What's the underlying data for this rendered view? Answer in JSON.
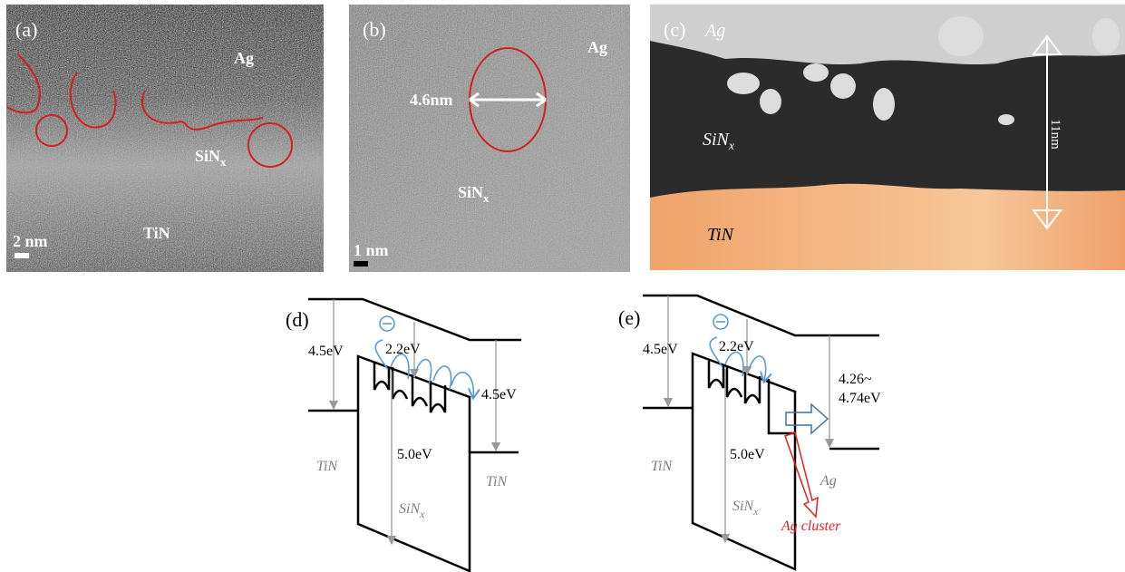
{
  "panels": {
    "a": {
      "label": "(a)",
      "ag": "Ag",
      "sinx": {
        "base": "SiN",
        "sub": "x"
      },
      "tin": "TiN",
      "scale": "2 nm"
    },
    "b": {
      "label": "(b)",
      "ag": "Ag",
      "size": "4.6nm",
      "sinx": {
        "base": "SiN",
        "sub": "x"
      },
      "scale": "1 nm"
    },
    "c": {
      "label": "(c)",
      "ag": "Ag",
      "sinx": {
        "base": "SiN",
        "sub": "x"
      },
      "tin": "TiN",
      "thickness": "11nm"
    },
    "d": {
      "label": "(d)",
      "barrier_left": "4.5eV",
      "trap_depth": "2.2eV",
      "barrier_right": "4.5eV",
      "gap": "5.0eV",
      "left": "TiN",
      "middle": {
        "base": "SiN",
        "sub": "x"
      },
      "right": "TiN"
    },
    "e": {
      "label": "(e)",
      "barrier_left": "4.5eV",
      "trap_depth": "2.2eV",
      "barrier_right": [
        "4.26~",
        "4.74eV"
      ],
      "gap": "5.0eV",
      "left": "TiN",
      "middle": {
        "base": "SiN",
        "sub": "x"
      },
      "right": "Ag",
      "cluster": "Ag cluster"
    }
  }
}
